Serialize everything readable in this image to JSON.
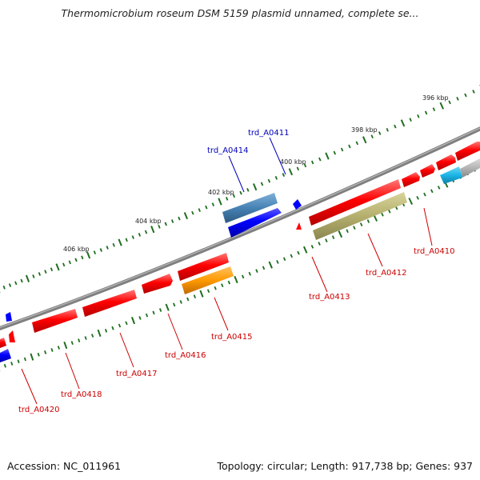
{
  "title": "Thermomicrobium roseum DSM 5159 plasmid unnamed, complete se...",
  "footer": {
    "accession": "Accession: NC_011961",
    "summary": "Topology: circular; Length: 917,738 bp; Genes: 937"
  },
  "colors": {
    "backbone": "#7f7f7f",
    "cds_red": "#ff0000",
    "cds_blue": "#0000ff",
    "label_red": "#cc0000",
    "label_blue": "#0000bb",
    "tick_green": "#1e6e1e",
    "steelblue": "#4682b4",
    "orange": "#ff9900",
    "olive": "#b5b06e",
    "cyan": "#1ab4e6",
    "gray": "#b4b4b4"
  },
  "scale_labels": [
    {
      "text": "396 kbp",
      "kbp": 396
    },
    {
      "text": "398 kbp",
      "kbp": 398
    },
    {
      "text": "400 kbp",
      "kbp": 400
    },
    {
      "text": "402 kbp",
      "kbp": 402
    },
    {
      "text": "404 kbp",
      "kbp": 404
    },
    {
      "text": "406 kbp",
      "kbp": 406
    }
  ],
  "gene_labels": [
    {
      "id": "trd_A0411",
      "text": "trd_A0411",
      "color": "blue"
    },
    {
      "id": "trd_A0414",
      "text": "trd_A0414",
      "color": "blue"
    },
    {
      "id": "trd_A0410",
      "text": "trd_A0410",
      "color": "red"
    },
    {
      "id": "trd_A0412",
      "text": "trd_A0412",
      "color": "red"
    },
    {
      "id": "trd_A0413",
      "text": "trd_A0413",
      "color": "red"
    },
    {
      "id": "trd_A0415",
      "text": "trd_A0415",
      "color": "red"
    },
    {
      "id": "trd_A0416",
      "text": "trd_A0416",
      "color": "red"
    },
    {
      "id": "trd_A0417",
      "text": "trd_A0417",
      "color": "red"
    },
    {
      "id": "trd_A0418",
      "text": "trd_A0418",
      "color": "red"
    },
    {
      "id": "trd_A0420",
      "text": "trd_A0420",
      "color": "red"
    }
  ]
}
